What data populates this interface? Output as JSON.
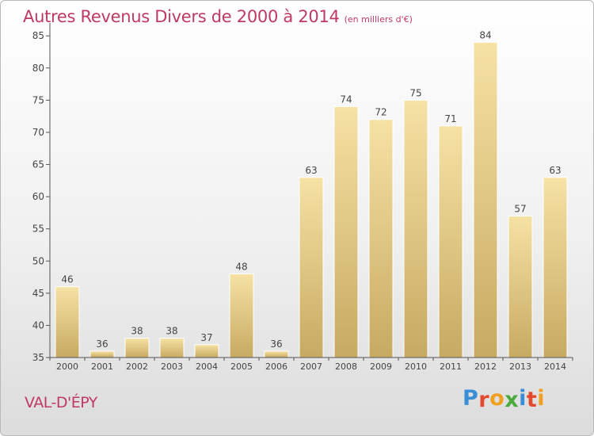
{
  "header": {
    "title": "Autres Revenus Divers de 2000 à 2014",
    "unit": "(en milliers d'€)"
  },
  "footer": {
    "place": "VAL-D'ÉPY",
    "logo_letters": [
      "P",
      "r",
      "o",
      "x",
      "i",
      "t",
      "i"
    ],
    "logo_colors": [
      "#3a8ed6",
      "#e2492f",
      "#f0a020",
      "#4aaa3c",
      "#3a8ed6",
      "#e2492f",
      "#f0a020"
    ]
  },
  "chart_data": {
    "type": "bar",
    "title": "Autres Revenus Divers de 2000 à 2014",
    "subtitle": "(en milliers d'€)",
    "categories": [
      "2000",
      "2001",
      "2002",
      "2003",
      "2004",
      "2005",
      "2006",
      "2007",
      "2008",
      "2009",
      "2010",
      "2011",
      "2012",
      "2013",
      "2014"
    ],
    "values": [
      46,
      36,
      38,
      38,
      37,
      48,
      36,
      63,
      74,
      72,
      75,
      71,
      84,
      57,
      63
    ],
    "ylim": [
      35,
      87
    ],
    "yticks": [
      35,
      40,
      45,
      50,
      55,
      60,
      65,
      70,
      75,
      80,
      85
    ],
    "grid": false,
    "bar_color_top": "#f6e2a4",
    "bar_color_bottom": "#c7aa62"
  }
}
